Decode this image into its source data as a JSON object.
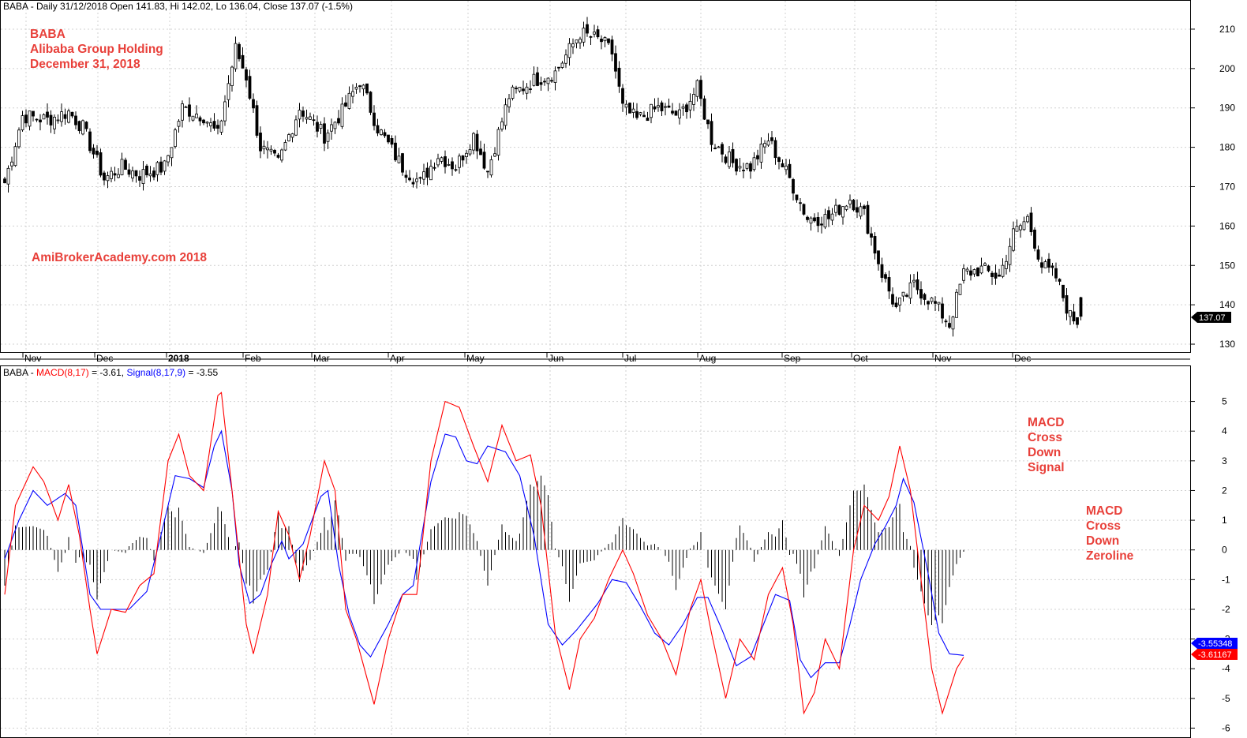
{
  "header": {
    "price_title": "BABA - Daily 31/12/2018 Open 141.83, Hi 142.02, Lo 136.04, Close 137.07 (-1.5%)",
    "macd_prefix": "BABA - ",
    "macd_label": "MACD(8,17)",
    "macd_value": " = -3.61, ",
    "signal_label": "Signal(8,17,9)",
    "signal_value": " = -3.55"
  },
  "annotations": {
    "ticker": "BABA",
    "company": "Alibaba Group Holding",
    "date": "December 31, 2018",
    "watermark": "AmiBrokerAcademy.com  2018",
    "cross_signal": [
      "MACD",
      "Cross",
      "Down",
      "Signal"
    ],
    "cross_zero": [
      "MACD",
      "Cross",
      "Down",
      "Zeroline"
    ]
  },
  "price_badge": "137.07",
  "macd_badges": {
    "signal": "-3.55348",
    "macd": "-3.61167"
  },
  "colors": {
    "macd": "#ff0000",
    "signal": "#0000ff",
    "annotation": "#e8403a",
    "histogram": "#000000",
    "candle": "#000000"
  },
  "chart_data": [
    {
      "type": "candlestick",
      "title": "BABA - Daily 31/12/2018 Open 141.83, Hi 142.02, Lo 136.04, Close 137.07 (-1.5%)",
      "x_months": [
        "Nov",
        "Dec",
        "2018",
        "Feb",
        "Mar",
        "Apr",
        "May",
        "Jun",
        "Jul",
        "Aug",
        "Sep",
        "Oct",
        "Nov",
        "Dec"
      ],
      "y_ticks": [
        130,
        140,
        150,
        160,
        170,
        180,
        190,
        200,
        210
      ],
      "ylim": [
        128,
        215
      ],
      "last": {
        "open": 141.83,
        "high": 142.02,
        "low": 136.04,
        "close": 137.07
      },
      "close_anchors": [
        [
          0,
          171
        ],
        [
          5,
          188
        ],
        [
          12,
          187
        ],
        [
          18,
          189
        ],
        [
          22,
          185
        ],
        [
          28,
          172
        ],
        [
          33,
          175
        ],
        [
          38,
          173
        ],
        [
          45,
          175
        ],
        [
          50,
          190
        ],
        [
          56,
          188
        ],
        [
          60,
          183
        ],
        [
          65,
          205
        ],
        [
          68,
          198
        ],
        [
          72,
          180
        ],
        [
          77,
          176
        ],
        [
          83,
          190
        ],
        [
          90,
          183
        ],
        [
          95,
          189
        ],
        [
          100,
          197
        ],
        [
          105,
          185
        ],
        [
          112,
          175
        ],
        [
          117,
          171
        ],
        [
          122,
          178
        ],
        [
          127,
          175
        ],
        [
          132,
          183
        ],
        [
          136,
          174
        ],
        [
          142,
          193
        ],
        [
          149,
          197
        ],
        [
          155,
          199
        ],
        [
          162,
          209
        ],
        [
          168,
          207
        ],
        [
          171,
          204
        ],
        [
          174,
          190
        ],
        [
          178,
          187
        ],
        [
          184,
          190
        ],
        [
          190,
          188
        ],
        [
          195,
          195
        ],
        [
          199,
          182
        ],
        [
          205,
          176
        ],
        [
          210,
          175
        ],
        [
          215,
          182
        ],
        [
          221,
          172
        ],
        [
          226,
          162
        ],
        [
          232,
          162
        ],
        [
          238,
          167
        ],
        [
          242,
          163
        ],
        [
          247,
          148
        ],
        [
          251,
          139
        ],
        [
          256,
          145
        ],
        [
          262,
          140
        ],
        [
          266,
          135
        ],
        [
          270,
          148
        ],
        [
          275,
          149
        ],
        [
          280,
          147
        ],
        [
          284,
          158
        ],
        [
          288,
          162
        ],
        [
          292,
          150
        ],
        [
          296,
          147
        ],
        [
          300,
          137
        ],
        [
          302,
          136
        ],
        [
          303,
          137
        ]
      ]
    },
    {
      "type": "line",
      "title": "BABA - MACD(8,17) = -3.61, Signal(8,17,9) = -3.55",
      "y_ticks": [
        -6,
        -5,
        -4,
        -3,
        -2,
        -1,
        0,
        1,
        2,
        3,
        4,
        5
      ],
      "ylim": [
        -6.2,
        5.6
      ],
      "series": [
        {
          "name": "MACD(8,17)",
          "anchors": [
            [
              0,
              -1.5
            ],
            [
              3,
              1.5
            ],
            [
              8,
              2.8
            ],
            [
              11,
              2.3
            ],
            [
              15,
              1.0
            ],
            [
              18,
              2.2
            ],
            [
              21,
              0.5
            ],
            [
              24,
              -2.0
            ],
            [
              26,
              -3.5
            ],
            [
              30,
              -2.0
            ],
            [
              34,
              -2.1
            ],
            [
              38,
              -1.2
            ],
            [
              42,
              -0.8
            ],
            [
              46,
              3.0
            ],
            [
              49,
              3.9
            ],
            [
              52,
              2.5
            ],
            [
              56,
              2.0
            ],
            [
              60,
              5.2
            ],
            [
              61,
              5.3
            ],
            [
              64,
              2.0
            ],
            [
              68,
              -2.5
            ],
            [
              70,
              -3.5
            ],
            [
              74,
              -1.5
            ],
            [
              77,
              1.3
            ],
            [
              80,
              0.5
            ],
            [
              83,
              -1.0
            ],
            [
              86,
              0.5
            ],
            [
              90,
              3.0
            ],
            [
              93,
              2.0
            ],
            [
              96,
              -2.0
            ],
            [
              99,
              -3.0
            ],
            [
              104,
              -5.2
            ],
            [
              108,
              -3.0
            ],
            [
              112,
              -1.5
            ],
            [
              116,
              -1.5
            ],
            [
              120,
              3.0
            ],
            [
              124,
              5.0
            ],
            [
              128,
              4.8
            ],
            [
              132,
              3.5
            ],
            [
              136,
              2.3
            ],
            [
              140,
              4.2
            ],
            [
              144,
              3.0
            ],
            [
              148,
              3.2
            ],
            [
              151,
              1.5
            ],
            [
              155,
              -2.8
            ],
            [
              159,
              -4.7
            ],
            [
              162,
              -3.0
            ],
            [
              166,
              -2.3
            ],
            [
              170,
              -1.0
            ],
            [
              174,
              0.0
            ],
            [
              177,
              -0.8
            ],
            [
              181,
              -2.2
            ],
            [
              185,
              -3.0
            ],
            [
              189,
              -4.2
            ],
            [
              193,
              -2.0
            ],
            [
              196,
              -1.0
            ],
            [
              199,
              -2.8
            ],
            [
              203,
              -5.0
            ],
            [
              207,
              -3.0
            ],
            [
              211,
              -3.7
            ],
            [
              215,
              -1.5
            ],
            [
              219,
              -0.6
            ],
            [
              222,
              -2.5
            ],
            [
              225,
              -5.5
            ],
            [
              228,
              -4.8
            ],
            [
              231,
              -3.0
            ],
            [
              235,
              -4.0
            ],
            [
              239,
              0.0
            ],
            [
              242,
              1.5
            ],
            [
              246,
              1.0
            ],
            [
              249,
              1.8
            ],
            [
              252,
              3.5
            ],
            [
              255,
              2.0
            ],
            [
              258,
              -1.0
            ],
            [
              261,
              -4.0
            ],
            [
              264,
              -5.5
            ],
            [
              268,
              -4.0
            ],
            [
              270,
              -3.61
            ]
          ]
        },
        {
          "name": "Signal(8,17,9)",
          "anchors": [
            [
              0,
              -0.3
            ],
            [
              4,
              1.0
            ],
            [
              8,
              2.0
            ],
            [
              12,
              1.5
            ],
            [
              17,
              1.9
            ],
            [
              20,
              1.5
            ],
            [
              24,
              -1.5
            ],
            [
              27,
              -2.0
            ],
            [
              31,
              -2.0
            ],
            [
              35,
              -2.0
            ],
            [
              40,
              -1.4
            ],
            [
              44,
              0.5
            ],
            [
              48,
              2.5
            ],
            [
              52,
              2.4
            ],
            [
              56,
              2.1
            ],
            [
              59,
              3.5
            ],
            [
              61,
              4.0
            ],
            [
              64,
              2.0
            ],
            [
              66,
              -0.5
            ],
            [
              69,
              -1.8
            ],
            [
              72,
              -1.5
            ],
            [
              75,
              -0.5
            ],
            [
              78,
              0.3
            ],
            [
              80,
              -0.3
            ],
            [
              84,
              0.2
            ],
            [
              89,
              1.8
            ],
            [
              91,
              2.0
            ],
            [
              94,
              -0.5
            ],
            [
              97,
              -2.2
            ],
            [
              100,
              -3.2
            ],
            [
              103,
              -3.6
            ],
            [
              108,
              -2.5
            ],
            [
              112,
              -1.5
            ],
            [
              115,
              -1.2
            ],
            [
              120,
              2.3
            ],
            [
              124,
              3.9
            ],
            [
              127,
              3.8
            ],
            [
              130,
              3.0
            ],
            [
              133,
              2.9
            ],
            [
              136,
              3.5
            ],
            [
              141,
              3.3
            ],
            [
              145,
              2.5
            ],
            [
              149,
              0.5
            ],
            [
              153,
              -2.5
            ],
            [
              157,
              -3.2
            ],
            [
              161,
              -2.7
            ],
            [
              167,
              -1.8
            ],
            [
              171,
              -1.0
            ],
            [
              175,
              -1.1
            ],
            [
              179,
              -1.9
            ],
            [
              183,
              -2.8
            ],
            [
              187,
              -3.2
            ],
            [
              191,
              -2.5
            ],
            [
              195,
              -1.6
            ],
            [
              198,
              -1.6
            ],
            [
              202,
              -2.7
            ],
            [
              206,
              -3.9
            ],
            [
              210,
              -3.6
            ],
            [
              214,
              -2.4
            ],
            [
              217,
              -1.5
            ],
            [
              221,
              -1.7
            ],
            [
              224,
              -3.7
            ],
            [
              227,
              -4.3
            ],
            [
              231,
              -3.8
            ],
            [
              235,
              -3.8
            ],
            [
              238,
              -2.5
            ],
            [
              241,
              -1.0
            ],
            [
              245,
              0.2
            ],
            [
              248,
              0.8
            ],
            [
              251,
              1.5
            ],
            [
              253,
              2.4
            ],
            [
              256,
              1.6
            ],
            [
              260,
              -0.8
            ],
            [
              263,
              -2.8
            ],
            [
              266,
              -3.5
            ],
            [
              270,
              -3.55
            ]
          ]
        }
      ],
      "histogram": {
        "name": "MACD - Signal",
        "values_derived_from_series": true
      }
    }
  ]
}
